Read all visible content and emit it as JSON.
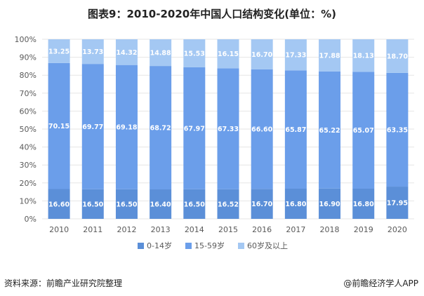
{
  "chart_data": {
    "type": "bar",
    "stacked": true,
    "title": "图表9：2010-2020年中国人口结构变化(单位：%)",
    "categories": [
      "2010",
      "2011",
      "2012",
      "2013",
      "2014",
      "2015",
      "2016",
      "2017",
      "2018",
      "2019",
      "2020"
    ],
    "series": [
      {
        "name": "0-14岁",
        "color": "#5b8fd8",
        "values": [
          16.6,
          16.5,
          16.5,
          16.4,
          16.5,
          16.52,
          16.7,
          16.8,
          16.9,
          16.8,
          17.95
        ],
        "labels": [
          "16.60",
          "16.50",
          "16.50",
          "16.40",
          "16.50",
          "16.52",
          "16.70",
          "16.80",
          "16.90",
          "16.80",
          "17.95"
        ]
      },
      {
        "name": "15-59岁",
        "color": "#6b9eea",
        "values": [
          70.15,
          69.77,
          69.18,
          68.72,
          67.97,
          67.33,
          66.6,
          65.87,
          65.22,
          65.07,
          63.35
        ],
        "labels": [
          "70.15",
          "69.77",
          "69.18",
          "68.72",
          "67.97",
          "67.33",
          "66.60",
          "65.87",
          "65.22",
          "65.07",
          "63.35"
        ]
      },
      {
        "name": "60岁及以上",
        "color": "#a4c8f3",
        "values": [
          13.25,
          13.73,
          14.32,
          14.88,
          15.53,
          16.15,
          16.7,
          17.33,
          17.88,
          18.13,
          18.7
        ],
        "labels": [
          "13.25",
          "13.73",
          "14.32",
          "14.88",
          "15.53",
          "16.15",
          "16.70",
          "17.33",
          "17.88",
          "18.13",
          "18.70"
        ]
      }
    ],
    "yticks": [
      "0%",
      "10%",
      "20%",
      "30%",
      "40%",
      "50%",
      "60%",
      "70%",
      "80%",
      "90%",
      "100%"
    ],
    "ylim": [
      0,
      100
    ],
    "legend_position": "bottom"
  },
  "footer": {
    "source": "资料来源：前瞻产业研究院整理",
    "brand": "@前瞻经济学人APP"
  }
}
